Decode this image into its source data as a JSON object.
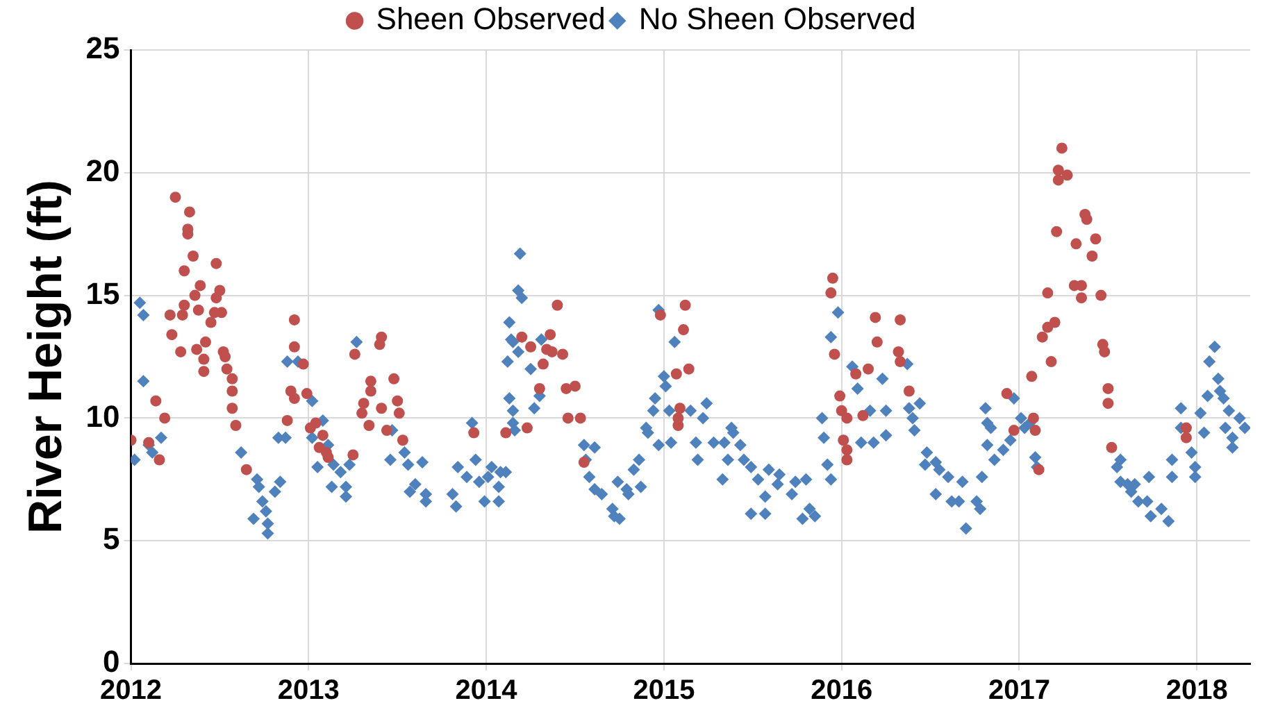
{
  "chart_data": {
    "type": "scatter",
    "ylabel": "River Height (ft)",
    "xlim": [
      2012,
      2018.3
    ],
    "xticks": [
      2012,
      2013,
      2014,
      2015,
      2016,
      2017,
      2018
    ],
    "ylim": [
      0,
      25
    ],
    "yticks": [
      0,
      5,
      10,
      15,
      20,
      25
    ],
    "grid": true,
    "legend": "top",
    "series": [
      {
        "name": "Sheen Observed",
        "color": "#c0504d",
        "marker": "circle",
        "x": [
          2012.0,
          2012.1,
          2012.14,
          2012.19,
          2012.16,
          2012.25,
          2012.33,
          2012.32,
          2012.32,
          2012.35,
          2012.3,
          2012.48,
          2012.39,
          2012.5,
          2012.36,
          2012.48,
          2012.3,
          2012.22,
          2012.29,
          2012.38,
          2012.47,
          2012.51,
          2012.45,
          2012.23,
          2012.28,
          2012.37,
          2012.42,
          2012.41,
          2012.41,
          2012.52,
          2012.53,
          2012.54,
          2012.57,
          2012.57,
          2012.57,
          2012.59,
          2012.65,
          2012.88,
          2012.92,
          2012.92,
          2012.97,
          2012.9,
          2012.92,
          2012.99,
          2013.01,
          2013.04,
          2013.08,
          2013.06,
          2013.1,
          2013.11,
          2013.25,
          2013.26,
          2013.41,
          2013.4,
          2013.35,
          2013.35,
          2013.48,
          2013.5,
          2013.51,
          2013.41,
          2013.31,
          2013.3,
          2013.34,
          2013.44,
          2013.53,
          2013.93,
          2014.11,
          2014.23,
          2014.2,
          2014.25,
          2014.36,
          2014.34,
          2014.32,
          2014.37,
          2014.43,
          2014.3,
          2014.4,
          2014.45,
          2014.5,
          2014.46,
          2014.53,
          2014.55,
          2014.98,
          2015.12,
          2015.11,
          2015.14,
          2015.07,
          2015.09,
          2015.08,
          2015.08,
          2015.95,
          2015.94,
          2015.96,
          2015.99,
          2016.0,
          2016.03,
          2016.01,
          2016.03,
          2016.03,
          2016.08,
          2016.15,
          2016.12,
          2016.19,
          2016.2,
          2016.33,
          2016.32,
          2016.33,
          2016.38,
          2016.93,
          2016.97,
          2017.07,
          2017.08,
          2017.09,
          2017.11,
          2017.18,
          2017.13,
          2017.16,
          2017.2,
          2017.16,
          2017.21,
          2017.22,
          2017.22,
          2017.27,
          2017.24,
          2017.32,
          2017.37,
          2017.38,
          2017.41,
          2017.43,
          2017.31,
          2017.35,
          2017.35,
          2017.46,
          2017.47,
          2017.48,
          2017.5,
          2017.5,
          2017.52,
          2017.94,
          2017.94
        ],
        "values": [
          9.1,
          9.0,
          10.7,
          10.0,
          8.3,
          19.0,
          18.4,
          17.7,
          17.5,
          16.6,
          16.0,
          16.3,
          15.4,
          15.2,
          15.0,
          14.9,
          14.6,
          14.2,
          14.2,
          14.4,
          14.3,
          14.3,
          13.9,
          13.4,
          12.7,
          12.8,
          13.1,
          12.4,
          11.9,
          12.7,
          12.5,
          12.0,
          11.6,
          11.1,
          10.4,
          9.7,
          7.9,
          9.9,
          14.0,
          12.9,
          12.2,
          11.1,
          10.8,
          11.0,
          9.6,
          9.8,
          9.3,
          8.8,
          8.6,
          8.4,
          8.5,
          12.6,
          13.3,
          13.0,
          11.5,
          11.1,
          11.6,
          10.7,
          10.2,
          10.4,
          10.6,
          10.2,
          9.7,
          9.5,
          9.1,
          9.4,
          9.4,
          9.6,
          13.3,
          12.9,
          13.4,
          12.8,
          12.2,
          12.7,
          12.6,
          11.2,
          14.6,
          11.2,
          11.3,
          10.0,
          10.0,
          8.2,
          14.2,
          14.6,
          13.6,
          12.0,
          11.8,
          10.4,
          10.0,
          9.7,
          15.7,
          15.1,
          12.6,
          10.9,
          10.3,
          10.0,
          9.1,
          8.7,
          8.3,
          11.8,
          12.0,
          10.1,
          14.1,
          13.1,
          14.0,
          12.7,
          12.3,
          11.1,
          11.0,
          9.5,
          11.7,
          10.0,
          9.5,
          7.9,
          12.3,
          13.3,
          13.7,
          13.9,
          15.1,
          17.6,
          19.7,
          20.1,
          19.9,
          21.0,
          17.1,
          18.3,
          18.1,
          16.6,
          17.3,
          15.4,
          15.4,
          14.9,
          15.0,
          13.0,
          12.7,
          11.2,
          10.6,
          8.8,
          9.6,
          9.2
        ]
      },
      {
        "name": "No Sheen Observed",
        "color": "#4f81bd",
        "marker": "diamond",
        "x": [
          2012.05,
          2012.07,
          2012.07,
          2012.02,
          2012.1,
          2012.12,
          2012.17,
          2012.62,
          2012.71,
          2012.72,
          2012.81,
          2012.84,
          2012.74,
          2012.76,
          2012.69,
          2012.77,
          2012.77,
          2012.83,
          2012.87,
          2012.88,
          2012.94,
          2013.02,
          2013.08,
          2013.02,
          2013.11,
          2013.05,
          2013.14,
          2013.18,
          2013.13,
          2013.21,
          2013.21,
          2013.23,
          2013.27,
          2013.47,
          2013.46,
          2013.54,
          2013.56,
          2013.64,
          2013.6,
          2013.57,
          2013.66,
          2013.66,
          2013.81,
          2013.83,
          2013.84,
          2013.92,
          2013.94,
          2013.89,
          2013.96,
          2014.03,
          2014.01,
          2013.99,
          2014.07,
          2014.11,
          2014.19,
          2014.18,
          2014.2,
          2014.13,
          2014.14,
          2014.15,
          2014.18,
          2014.12,
          2014.25,
          2014.31,
          2014.3,
          2014.27,
          2014.13,
          2014.15,
          2014.15,
          2014.16,
          2014.08,
          2014.07,
          2014.55,
          2014.61,
          2014.56,
          2014.58,
          2014.61,
          2014.65,
          2014.74,
          2014.71,
          2014.75,
          2014.72,
          2014.79,
          2014.8,
          2014.83,
          2014.86,
          2014.87,
          2014.9,
          2014.91,
          2014.94,
          2014.95,
          2014.97,
          2015.0,
          2015.01,
          2014.97,
          2015.03,
          2015.04,
          2015.06,
          2015.15,
          2015.24,
          2015.22,
          2015.18,
          2015.19,
          2015.28,
          2015.33,
          2015.34,
          2015.38,
          2015.39,
          2015.43,
          2015.36,
          2015.45,
          2015.49,
          2015.53,
          2015.49,
          2015.57,
          2015.59,
          2015.57,
          2015.64,
          2015.65,
          2015.72,
          2015.74,
          2015.8,
          2015.82,
          2015.78,
          2015.85,
          2015.89,
          2015.9,
          2015.92,
          2015.94,
          2015.94,
          2015.98,
          2016.06,
          2016.09,
          2016.11,
          2016.18,
          2016.16,
          2016.23,
          2016.37,
          2016.25,
          2016.25,
          2016.38,
          2016.44,
          2016.4,
          2016.41,
          2016.48,
          2016.47,
          2016.53,
          2016.55,
          2016.6,
          2016.53,
          2016.62,
          2016.68,
          2016.66,
          2016.7,
          2016.76,
          2016.78,
          2016.79,
          2016.81,
          2016.82,
          2016.84,
          2016.86,
          2016.82,
          2016.91,
          2016.95,
          2016.97,
          2017.01,
          2017.03,
          2017.06,
          2017.09,
          2017.1,
          2017.57,
          2017.55,
          2017.57,
          2017.61,
          2017.65,
          2017.63,
          2017.67,
          2017.73,
          2017.72,
          2017.74,
          2017.8,
          2017.84,
          2017.86,
          2017.86,
          2017.91,
          2017.91,
          2017.97,
          2017.99,
          2017.99,
          2018.02,
          2018.04,
          2018.06,
          2018.07,
          2018.1,
          2018.12,
          2018.13,
          2018.15,
          2018.16,
          2018.18,
          2018.2,
          2018.2,
          2018.24,
          2018.27
        ],
        "values": [
          14.7,
          14.2,
          11.5,
          8.3,
          8.9,
          8.6,
          9.2,
          8.6,
          7.5,
          7.2,
          7.0,
          7.4,
          6.6,
          6.2,
          5.9,
          5.7,
          5.3,
          9.2,
          9.2,
          12.3,
          12.3,
          10.7,
          9.9,
          9.2,
          8.9,
          8.0,
          8.1,
          7.8,
          7.2,
          7.2,
          6.8,
          8.1,
          13.1,
          9.5,
          8.3,
          8.6,
          8.1,
          8.2,
          7.3,
          7.0,
          6.9,
          6.6,
          6.9,
          6.4,
          8.0,
          9.8,
          8.3,
          7.6,
          7.4,
          8.0,
          7.6,
          6.6,
          6.6,
          7.8,
          16.7,
          15.2,
          14.9,
          13.9,
          13.2,
          13.1,
          12.7,
          12.3,
          12.0,
          13.2,
          10.9,
          10.4,
          10.8,
          10.3,
          9.8,
          9.5,
          7.8,
          7.2,
          8.9,
          8.8,
          8.3,
          7.6,
          7.1,
          6.9,
          7.4,
          6.3,
          5.9,
          6.0,
          7.1,
          6.9,
          7.9,
          8.3,
          7.2,
          9.6,
          9.4,
          10.3,
          10.8,
          8.9,
          11.7,
          11.3,
          14.4,
          10.3,
          9.0,
          13.1,
          10.3,
          10.6,
          10.0,
          9.0,
          8.3,
          9.0,
          7.5,
          9.0,
          9.6,
          9.4,
          8.9,
          8.3,
          8.3,
          8.0,
          7.5,
          6.1,
          6.1,
          7.9,
          6.8,
          7.3,
          7.7,
          6.9,
          7.4,
          7.5,
          6.3,
          5.9,
          6.0,
          10.0,
          9.2,
          8.1,
          7.5,
          13.3,
          14.3,
          12.1,
          11.2,
          9.0,
          9.0,
          10.3,
          11.6,
          12.2,
          10.3,
          9.3,
          10.4,
          10.6,
          10.0,
          9.5,
          8.6,
          8.1,
          8.2,
          7.9,
          7.6,
          6.9,
          6.6,
          7.4,
          6.6,
          5.5,
          6.6,
          6.3,
          7.6,
          10.4,
          9.8,
          9.6,
          8.3,
          8.9,
          8.7,
          9.1,
          10.8,
          10.0,
          9.6,
          9.8,
          8.4,
          8.0,
          8.3,
          8.0,
          7.4,
          7.3,
          7.3,
          7.0,
          6.6,
          7.6,
          6.6,
          6.0,
          6.3,
          5.8,
          7.6,
          8.3,
          9.6,
          10.4,
          8.6,
          8.0,
          7.6,
          10.2,
          9.4,
          10.9,
          12.3,
          12.9,
          11.6,
          11.1,
          10.8,
          9.6,
          10.3,
          9.2,
          8.8,
          10.0,
          9.6
        ]
      }
    ]
  }
}
